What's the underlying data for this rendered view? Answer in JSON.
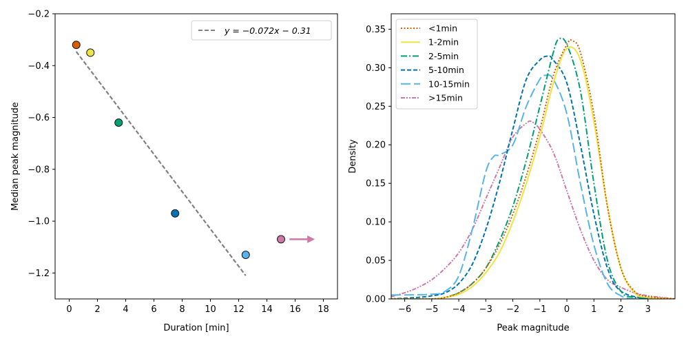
{
  "chart_data": [
    {
      "type": "scatter",
      "xlabel": "Duration [min]",
      "ylabel": "Median peak magnitude",
      "xlim": [
        -1,
        19
      ],
      "ylim": [
        -1.3,
        -0.2
      ],
      "xticks": [
        0,
        2,
        4,
        6,
        8,
        10,
        12,
        14,
        16,
        18
      ],
      "xtick_labels": [
        "0",
        "2",
        "4",
        "6",
        "8",
        "10",
        "12",
        "14",
        "16",
        "18"
      ],
      "yticks": [
        -0.2,
        -0.4,
        -0.6,
        -0.8,
        -1.0,
        -1.2
      ],
      "ytick_labels": [
        "−0.2",
        "−0.4",
        "−0.6",
        "−0.8",
        "−1.0",
        "−1.2"
      ],
      "points": [
        {
          "x": 0.5,
          "y": -0.32,
          "color": "#d55e00"
        },
        {
          "x": 1.5,
          "y": -0.35,
          "color": "#f0e442"
        },
        {
          "x": 3.5,
          "y": -0.62,
          "color": "#009e73"
        },
        {
          "x": 7.5,
          "y": -0.97,
          "color": "#0072b2"
        },
        {
          "x": 12.5,
          "y": -1.13,
          "color": "#56b4e9"
        },
        {
          "x": 15.0,
          "y": -1.07,
          "color": "#cc79a7"
        }
      ],
      "arrow": {
        "x_from": 15.6,
        "x_to": 17.4,
        "y": -1.07,
        "color": "#cc79a7"
      },
      "fit": {
        "slope": -0.072,
        "intercept": -0.31,
        "x_from": 0.5,
        "x_to": 12.5,
        "color": "#808080"
      },
      "legend": {
        "position": "top-right",
        "label": "y = −0.072x − 0.31"
      }
    },
    {
      "type": "line",
      "xlabel": "Peak magnitude",
      "ylabel": "Density",
      "xlim": [
        -6.5,
        4
      ],
      "ylim": [
        0,
        0.37
      ],
      "xticks": [
        -6,
        -5,
        -4,
        -3,
        -2,
        -1,
        0,
        1,
        2,
        3
      ],
      "xtick_labels": [
        "−6",
        "−5",
        "−4",
        "−3",
        "−2",
        "−1",
        "0",
        "1",
        "2",
        "3"
      ],
      "yticks": [
        0,
        0.05,
        0.1,
        0.15,
        0.2,
        0.25,
        0.3,
        0.35
      ],
      "ytick_labels": [
        "0.00",
        "0.05",
        "0.10",
        "0.15",
        "0.20",
        "0.25",
        "0.30",
        "0.35"
      ],
      "legend": {
        "position": "top-left"
      },
      "series": [
        {
          "name": "<1min",
          "color": "#d55e00",
          "dash": "2,2.5",
          "width": 2,
          "x": [
            -6.5,
            -5,
            -4.5,
            -4,
            -3.5,
            -3,
            -2.5,
            -2,
            -1.5,
            -1,
            -0.5,
            0,
            0.2,
            0.5,
            1,
            1.5,
            2,
            2.5,
            3,
            4
          ],
          "y": [
            0,
            0,
            0.002,
            0.008,
            0.02,
            0.04,
            0.07,
            0.11,
            0.16,
            0.22,
            0.29,
            0.33,
            0.335,
            0.32,
            0.24,
            0.12,
            0.04,
            0.01,
            0.003,
            0
          ]
        },
        {
          "name": "1-2min",
          "color": "#f0e442",
          "dash": "",
          "width": 2,
          "x": [
            -6.5,
            -5,
            -4.5,
            -4,
            -3.5,
            -3,
            -2.5,
            -2,
            -1.5,
            -1,
            -0.5,
            0,
            0.5,
            1,
            1.5,
            2,
            2.5,
            3,
            4
          ],
          "y": [
            0,
            0,
            0.002,
            0.006,
            0.016,
            0.034,
            0.06,
            0.1,
            0.15,
            0.21,
            0.28,
            0.325,
            0.31,
            0.23,
            0.12,
            0.04,
            0.008,
            0.002,
            0
          ]
        },
        {
          "name": "2-5min",
          "color": "#009e73",
          "dash": "9,3,2,3",
          "width": 2,
          "x": [
            -6.5,
            -5,
            -4.5,
            -4,
            -3.5,
            -3,
            -2.5,
            -2,
            -1.5,
            -1,
            -0.5,
            -0.3,
            0,
            0.5,
            1,
            1.5,
            2,
            2.5,
            4
          ],
          "y": [
            0,
            0,
            0.002,
            0.008,
            0.02,
            0.04,
            0.075,
            0.12,
            0.18,
            0.25,
            0.32,
            0.337,
            0.33,
            0.27,
            0.15,
            0.05,
            0.01,
            0.002,
            0
          ]
        },
        {
          "name": "5-10min",
          "color": "#0072b2",
          "dash": "6,3",
          "width": 2,
          "x": [
            -6.5,
            -5.5,
            -5,
            -4.5,
            -4,
            -3.5,
            -3,
            -2.5,
            -2,
            -1.5,
            -1,
            -0.7,
            -0.5,
            0,
            0.5,
            1,
            1.5,
            2,
            3,
            4
          ],
          "y": [
            0,
            0.002,
            0.004,
            0.008,
            0.02,
            0.045,
            0.09,
            0.15,
            0.22,
            0.285,
            0.31,
            0.315,
            0.31,
            0.28,
            0.2,
            0.11,
            0.04,
            0.01,
            0,
            0
          ]
        },
        {
          "name": "10-15min",
          "color": "#56b4e9",
          "dash": "14,5",
          "width": 2,
          "x": [
            -6.5,
            -5,
            -4.5,
            -4,
            -3.5,
            -3,
            -2.7,
            -2.5,
            -2,
            -1.5,
            -1,
            -0.8,
            -0.5,
            0,
            0.5,
            1,
            1.5,
            2,
            2.5,
            4
          ],
          "y": [
            0.005,
            0.006,
            0.01,
            0.03,
            0.09,
            0.165,
            0.185,
            0.187,
            0.2,
            0.25,
            0.285,
            0.29,
            0.285,
            0.24,
            0.15,
            0.07,
            0.02,
            0.004,
            0,
            0
          ]
        },
        {
          "name": ">15min",
          "color": "#cc79a7",
          "dash": "6,2,2,2,2,2",
          "width": 2,
          "x": [
            -6.5,
            -6,
            -5.5,
            -5,
            -4.5,
            -4,
            -3.5,
            -3,
            -2.5,
            -2,
            -1.5,
            -1.3,
            -1,
            -0.5,
            0,
            0.5,
            1,
            1.5,
            2,
            2.5,
            3,
            3.5,
            4
          ],
          "y": [
            0.003,
            0.008,
            0.015,
            0.025,
            0.04,
            0.06,
            0.09,
            0.13,
            0.17,
            0.21,
            0.228,
            0.23,
            0.22,
            0.19,
            0.14,
            0.09,
            0.05,
            0.025,
            0.015,
            0.008,
            0.004,
            0.002,
            0
          ]
        }
      ]
    }
  ]
}
